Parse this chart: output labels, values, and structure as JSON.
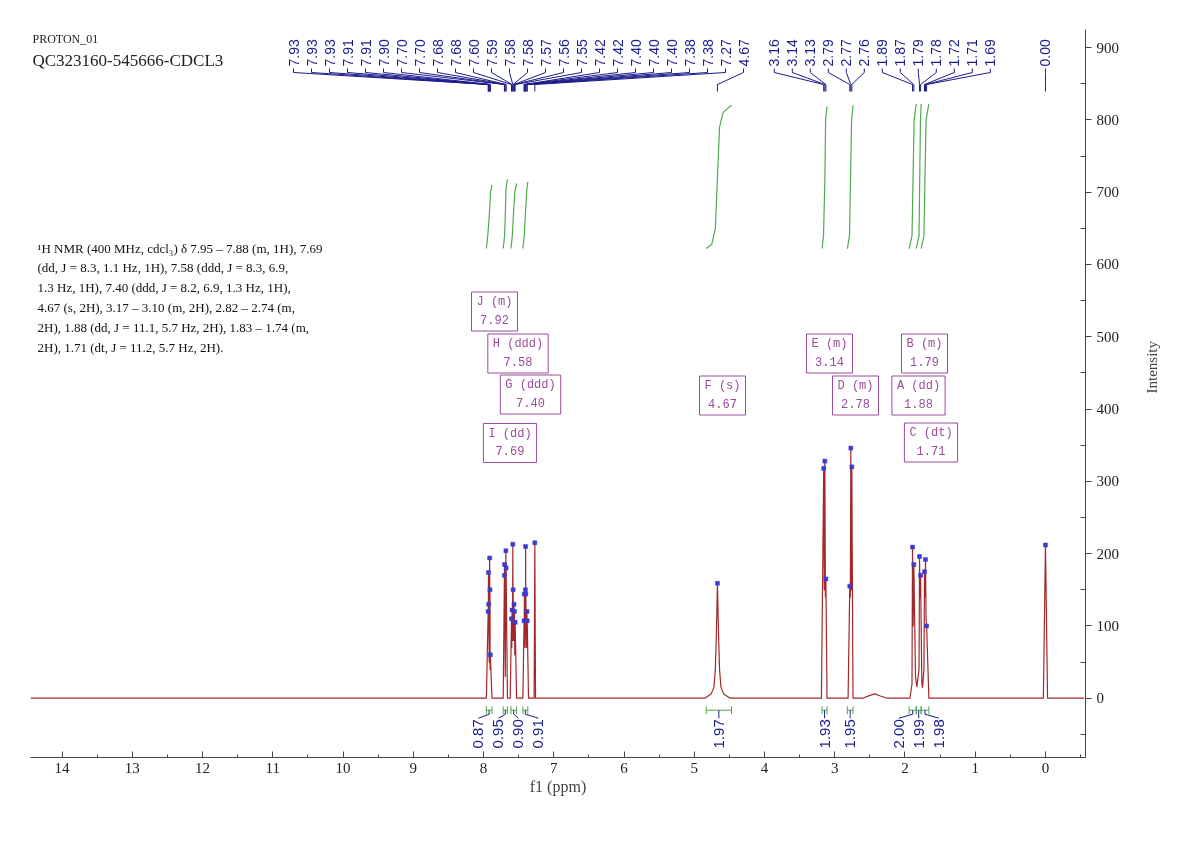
{
  "chart_data": {
    "type": "line",
    "title": "PROTON_01",
    "subtitle": "QC323160-545666-CDCL3",
    "xlabel": "f1 (ppm)",
    "ylabel": "Intensity",
    "xlim": [
      14.45,
      -0.57
    ],
    "ylim": [
      -82,
      925
    ],
    "xticks": [
      14,
      13,
      12,
      11,
      10,
      9,
      8,
      7,
      6,
      5,
      4,
      3,
      2,
      1,
      0
    ],
    "yticks": [
      0,
      100,
      200,
      300,
      400,
      500,
      600,
      700,
      800,
      900
    ],
    "series": [
      {
        "color": "#a3282a",
        "x": [
          14.45,
          8.0,
          7.96,
          7.934,
          7.932,
          7.93,
          7.928,
          7.926,
          7.919,
          7.913,
          7.911,
          7.909,
          7.906,
          7.903,
          7.88,
          7.72,
          7.703,
          7.7015,
          7.7,
          7.691,
          7.682,
          7.6805,
          7.679,
          7.66,
          7.62,
          7.602,
          7.598,
          7.594,
          7.588,
          7.583,
          7.581,
          7.579,
          7.573,
          7.567,
          7.5635,
          7.56,
          7.555,
          7.55,
          7.53,
          7.44,
          7.423,
          7.421,
          7.419,
          7.411,
          7.404,
          7.4025,
          7.401,
          7.3995,
          7.398,
          7.39,
          7.382,
          7.38,
          7.378,
          7.36,
          7.28,
          7.27,
          7.26,
          4.85,
          4.76,
          4.72,
          4.7,
          4.685,
          4.67,
          4.655,
          4.64,
          4.62,
          4.58,
          4.49,
          3.19,
          3.157,
          3.149,
          3.141,
          3.133,
          3.126,
          3.11,
          2.81,
          2.786,
          2.778,
          2.771,
          2.764,
          2.757,
          2.74,
          2.6,
          2.5,
          2.43,
          2.35,
          2.25,
          1.93,
          1.9,
          1.893,
          1.884,
          1.874,
          1.85,
          1.83,
          1.8,
          1.793,
          1.786,
          1.778,
          1.76,
          1.75,
          1.73,
          1.722,
          1.715,
          1.708,
          1.7,
          1.692,
          1.66,
          0.03,
          0.0,
          -0.03,
          -0.55
        ],
        "values": [
          0,
          0,
          0,
          120,
          100,
          174,
          110,
          130,
          50,
          194,
          130,
          150,
          40,
          60,
          0,
          0,
          170,
          150,
          185,
          30,
          204,
          160,
          180,
          0,
          0,
          110,
          70,
          122,
          80,
          213,
          140,
          150,
          80,
          130,
          90,
          120,
          60,
          105,
          0,
          0,
          107,
          80,
          144,
          70,
          150,
          120,
          210,
          120,
          144,
          70,
          120,
          90,
          107,
          0,
          0,
          215,
          0,
          0,
          6,
          15,
          40,
          90,
          159,
          90,
          40,
          15,
          6,
          0,
          0,
          318,
          150,
          328,
          140,
          165,
          0,
          0,
          155,
          140,
          346,
          150,
          320,
          0,
          0,
          4,
          6,
          3,
          0,
          0,
          20,
          209,
          100,
          185,
          30,
          16,
          40,
          196,
          140,
          170,
          20,
          15,
          40,
          175,
          140,
          192,
          110,
          100,
          0,
          0,
          212,
          0,
          0
        ]
      },
      {
        "color": "#4daa4d",
        "x": [
          7.96,
          7.94,
          7.92,
          7.9,
          7.88
        ],
        "values": [
          622,
          640,
          665,
          700,
          710
        ]
      },
      {
        "color": "#4daa4d",
        "x": [
          7.72,
          7.7,
          7.69,
          7.68,
          7.66
        ],
        "values": [
          622,
          640,
          670,
          705,
          718
        ]
      },
      {
        "color": "#4daa4d",
        "x": [
          7.61,
          7.59,
          7.575,
          7.555,
          7.53
        ],
        "values": [
          622,
          640,
          668,
          700,
          712
        ]
      },
      {
        "color": "#4daa4d",
        "x": [
          7.44,
          7.42,
          7.405,
          7.385,
          7.37
        ],
        "values": [
          622,
          640,
          668,
          702,
          714
        ]
      },
      {
        "color": "#4daa4d",
        "x": [
          4.83,
          4.75,
          4.7,
          4.67,
          4.64,
          4.59,
          4.5,
          4.47
        ],
        "values": [
          622,
          628,
          650,
          720,
          790,
          810,
          818,
          820
        ]
      },
      {
        "color": "#4daa4d",
        "x": [
          3.18,
          3.16,
          3.14,
          3.13,
          3.11
        ],
        "values": [
          622,
          640,
          720,
          800,
          818
        ]
      },
      {
        "color": "#4daa4d",
        "x": [
          2.82,
          2.79,
          2.775,
          2.76,
          2.74
        ],
        "values": [
          622,
          640,
          720,
          800,
          820
        ]
      },
      {
        "color": "#4daa4d",
        "x": [
          1.94,
          1.9,
          1.885,
          1.87,
          1.84
        ],
        "values": [
          622,
          640,
          720,
          800,
          822
        ]
      },
      {
        "color": "#4daa4d",
        "x": [
          1.84,
          1.8,
          1.79,
          1.78,
          1.77
        ],
        "values": [
          622,
          640,
          720,
          800,
          822
        ]
      },
      {
        "color": "#4daa4d",
        "x": [
          1.77,
          1.73,
          1.715,
          1.7,
          1.66
        ],
        "values": [
          622,
          640,
          720,
          800,
          822
        ]
      },
      {
        "type": "scatter",
        "marker": "square",
        "color": "#3b3bd0",
        "x": [
          7.934,
          7.93,
          7.926,
          7.913,
          7.909,
          7.903,
          7.703,
          7.7,
          7.682,
          7.679,
          7.602,
          7.594,
          7.583,
          7.579,
          7.567,
          7.56,
          7.55,
          7.423,
          7.419,
          7.404,
          7.401,
          7.398,
          7.382,
          7.378,
          7.27,
          4.67,
          3.157,
          3.141,
          3.126,
          2.786,
          2.771,
          2.757,
          1.893,
          1.874,
          1.793,
          1.778,
          1.722,
          1.708,
          1.692,
          0.0
        ],
        "values": [
          120,
          174,
          130,
          194,
          150,
          60,
          170,
          185,
          204,
          180,
          110,
          122,
          213,
          150,
          130,
          120,
          105,
          107,
          144,
          150,
          210,
          144,
          120,
          107,
          215,
          159,
          318,
          328,
          165,
          155,
          346,
          320,
          209,
          185,
          196,
          170,
          175,
          192,
          100,
          212
        ]
      }
    ],
    "annotations": [
      "¹H NMR (400 MHz, cdcl₃) δ 7.95 – 7.88 (m, 1H), 7.69 (dd, J = 8.3, 1.1 Hz, 1H), 7.58 (ddd, J = 8.3, 6.9, 1.3 Hz, 1H), 7.40 (ddd, J = 8.2, 6.9, 1.3 Hz, 1H), 4.67 (s, 2H), 3.17 – 3.10 (m, 2H), 2.82 – 2.74 (m, 2H), 1.88 (dd, J = 11.1, 5.7 Hz, 2H), 1.83 – 1.74 (m, 2H), 1.71 (dt, J = 11.2, 5.7 Hz, 2H).",
      "0.87",
      "0.95",
      "0.90",
      "0.91",
      "1.97",
      "1.93",
      "1.95",
      "2.00",
      "1.99",
      "1.98",
      "J (m)\n7.92",
      "H (ddd)\n7.58",
      "G (ddd)\n7.40",
      "I (dd)\n7.69",
      "F (s)\n4.67",
      "E (m)\n3.14",
      "D (m)\n2.78",
      "B (m)\n1.79",
      "A (dd)\n1.88",
      "C (dt)\n1.71",
      "7.93",
      "7.93",
      "7.93",
      "7.91",
      "7.91",
      "7.90",
      "7.70",
      "7.70",
      "7.68",
      "7.68",
      "7.60",
      "7.59",
      "7.58",
      "7.58",
      "7.57",
      "7.56",
      "7.55",
      "7.42",
      "7.42",
      "7.40",
      "7.40",
      "7.40",
      "7.38",
      "7.38",
      "7.27",
      "4.67",
      "3.16",
      "3.14",
      "3.13",
      "2.79",
      "2.77",
      "2.76",
      "1.89",
      "1.87",
      "1.79",
      "1.78",
      "1.72",
      "1.71",
      "1.69",
      "0.00"
    ]
  }
}
